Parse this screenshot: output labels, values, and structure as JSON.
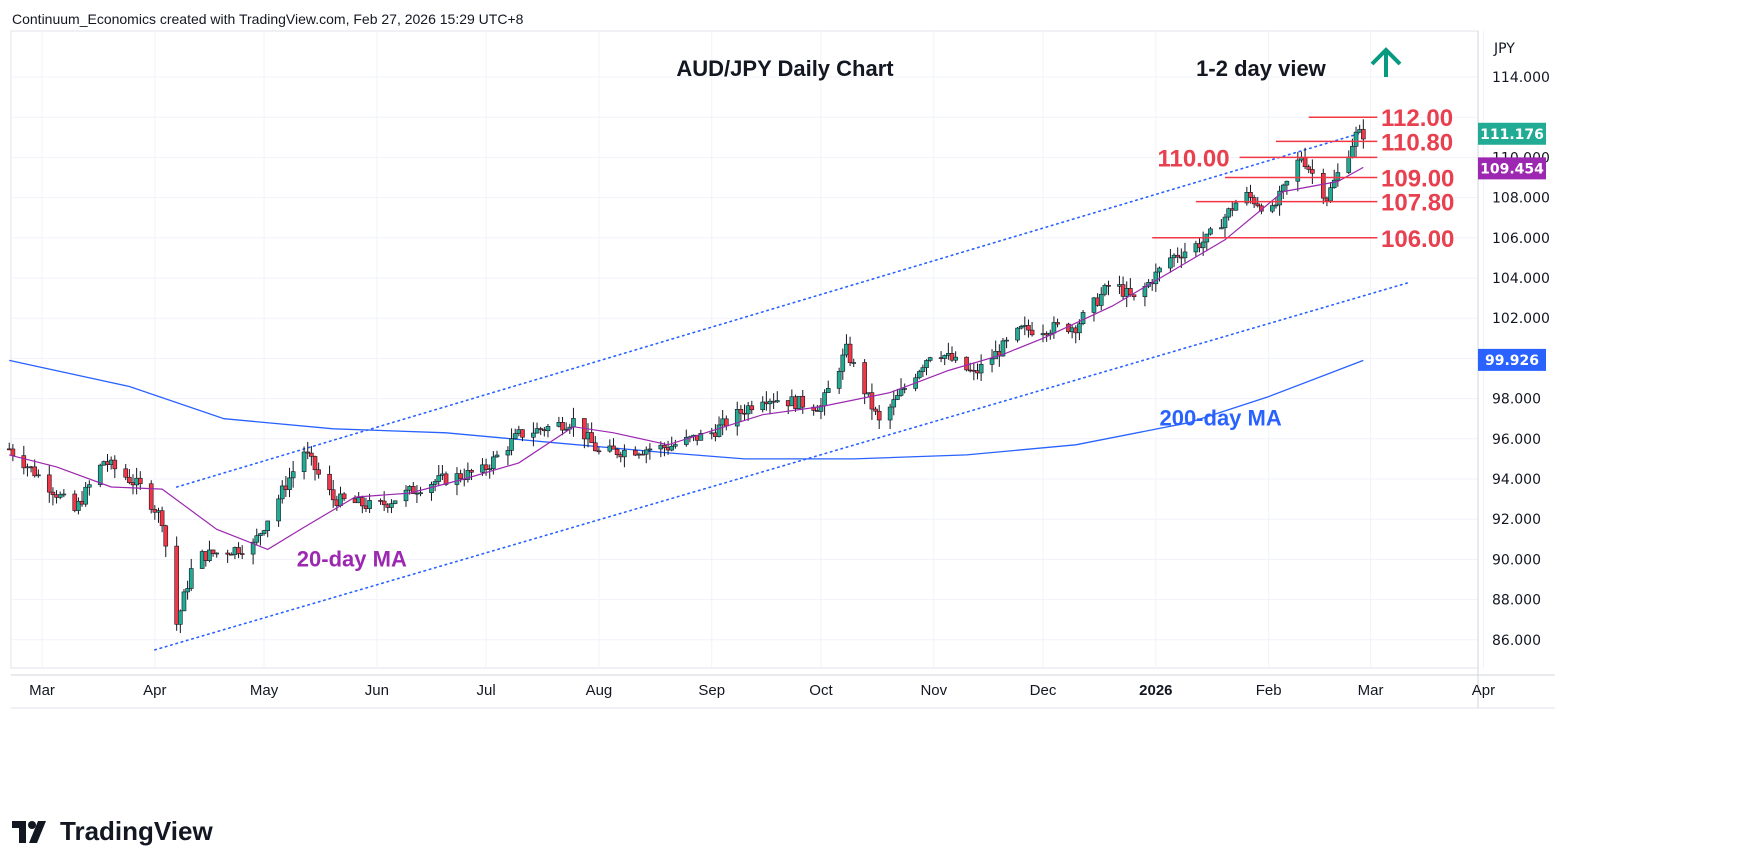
{
  "header": {
    "created_by": "Continuum_Economics created with TradingView.com, Feb 27, 2026 15:29 UTC+8"
  },
  "brand": {
    "name": "TradingView",
    "logo_icon": "tradingview-logo-icon"
  },
  "axis": {
    "currency": "JPY"
  },
  "colors": {
    "up": "#22ab94",
    "down": "#f23645",
    "ma20": "#9c27b0",
    "ma200": "#2962ff",
    "level": "#f23645",
    "channel": "#2962ff",
    "arrow": "#089981"
  },
  "chart_data": {
    "type": "candlestick",
    "title": "AUD/JPY Daily Chart",
    "view_label": "1-2 day view",
    "view_direction": "up",
    "ylim": [
      84.5,
      116.5
    ],
    "y_ticks": [
      86,
      88,
      90,
      92,
      94,
      96,
      98,
      100,
      102,
      104,
      106,
      108,
      110,
      112,
      114
    ],
    "y_tick_labels": [
      "86.000",
      "88.000",
      "90.000",
      "92.000",
      "94.000",
      "96.000",
      "98.000",
      "",
      "102.000",
      "104.000",
      "106.000",
      "108.000",
      "110.000",
      "",
      "114.000"
    ],
    "x_ticks": [
      "Mar",
      "Apr",
      "May",
      "Jun",
      "Jul",
      "Aug",
      "Sep",
      "Oct",
      "Nov",
      "Dec",
      "2026",
      "Feb",
      "Mar",
      "Apr"
    ],
    "price_labels": [
      {
        "value": 111.176,
        "text": "111.176",
        "color": "#22ab94"
      },
      {
        "value": 109.454,
        "text": "109.454",
        "color": "#9c27b0"
      },
      {
        "value": 99.926,
        "text": "99.926",
        "color": "#2962ff"
      }
    ],
    "levels": [
      {
        "value": 112.0,
        "label": "112.00",
        "from": "2026-02-12",
        "to": "2026-02-27",
        "label_side": "right"
      },
      {
        "value": 110.8,
        "label": "110.80",
        "from": "2026-02-03",
        "to": "2026-02-27",
        "label_side": "right"
      },
      {
        "value": 110.0,
        "label": "110.00",
        "from": "2026-01-24",
        "to": "2026-02-27",
        "label_side": "left"
      },
      {
        "value": 109.0,
        "label": "109.00",
        "from": "2026-01-20",
        "to": "2026-02-27",
        "label_side": "right"
      },
      {
        "value": 107.8,
        "label": "107.80",
        "from": "2026-01-12",
        "to": "2026-02-27",
        "label_side": "right"
      },
      {
        "value": 106.0,
        "label": "106.00",
        "from": "2025-12-31",
        "to": "2026-02-27",
        "label_side": "right"
      }
    ],
    "channel_upper": [
      {
        "x": "2025-04-07",
        "y": 93.6
      },
      {
        "x": "2026-02-28",
        "y": 111.3
      }
    ],
    "channel_lower": [
      {
        "x": "2025-04-01",
        "y": 85.5
      },
      {
        "x": "2026-03-12",
        "y": 103.8
      }
    ],
    "ma_labels": [
      {
        "text": "20-day MA",
        "x": "2025-05-10",
        "y": 90.0,
        "color": "#9c27b0"
      },
      {
        "text": "200-day MA",
        "x": "2026-01-02",
        "y": 97.0,
        "color": "#2962ff"
      }
    ],
    "ma200": [
      {
        "x": "2025-02-20",
        "y": 99.9
      },
      {
        "x": "2025-03-25",
        "y": 98.6
      },
      {
        "x": "2025-04-20",
        "y": 97.0
      },
      {
        "x": "2025-05-20",
        "y": 96.5
      },
      {
        "x": "2025-06-20",
        "y": 96.3
      },
      {
        "x": "2025-07-20",
        "y": 95.8
      },
      {
        "x": "2025-08-20",
        "y": 95.3
      },
      {
        "x": "2025-09-10",
        "y": 95.0
      },
      {
        "x": "2025-10-10",
        "y": 95.0
      },
      {
        "x": "2025-11-10",
        "y": 95.2
      },
      {
        "x": "2025-12-10",
        "y": 95.7
      },
      {
        "x": "2026-01-10",
        "y": 96.8
      },
      {
        "x": "2026-02-01",
        "y": 98.1
      },
      {
        "x": "2026-02-27",
        "y": 99.9
      }
    ],
    "ma20": [
      {
        "x": "2025-02-20",
        "y": 95.2
      },
      {
        "x": "2025-03-05",
        "y": 94.6
      },
      {
        "x": "2025-03-20",
        "y": 93.6
      },
      {
        "x": "2025-04-03",
        "y": 93.5
      },
      {
        "x": "2025-04-18",
        "y": 91.5
      },
      {
        "x": "2025-05-02",
        "y": 90.5
      },
      {
        "x": "2025-05-12",
        "y": 91.6
      },
      {
        "x": "2025-05-26",
        "y": 93.1
      },
      {
        "x": "2025-06-10",
        "y": 93.3
      },
      {
        "x": "2025-06-25",
        "y": 94.0
      },
      {
        "x": "2025-07-10",
        "y": 94.8
      },
      {
        "x": "2025-07-25",
        "y": 96.6
      },
      {
        "x": "2025-08-05",
        "y": 96.3
      },
      {
        "x": "2025-08-20",
        "y": 95.7
      },
      {
        "x": "2025-09-01",
        "y": 96.4
      },
      {
        "x": "2025-09-15",
        "y": 97.2
      },
      {
        "x": "2025-10-01",
        "y": 97.6
      },
      {
        "x": "2025-10-20",
        "y": 98.3
      },
      {
        "x": "2025-11-05",
        "y": 99.4
      },
      {
        "x": "2025-11-20",
        "y": 100.2
      },
      {
        "x": "2025-12-01",
        "y": 101.0
      },
      {
        "x": "2025-12-20",
        "y": 102.6
      },
      {
        "x": "2026-01-05",
        "y": 104.3
      },
      {
        "x": "2026-01-20",
        "y": 105.9
      },
      {
        "x": "2026-02-05",
        "y": 108.3
      },
      {
        "x": "2026-02-20",
        "y": 108.8
      },
      {
        "x": "2026-02-27",
        "y": 109.5
      }
    ],
    "candle_path": [
      [
        "2025-02-20",
        95.5
      ],
      [
        "2025-03-01",
        94.0
      ],
      [
        "2025-03-10",
        92.4
      ],
      [
        "2025-03-18",
        94.9
      ],
      [
        "2025-03-28",
        93.6
      ],
      [
        "2025-04-03",
        92.0
      ],
      [
        "2025-04-07",
        86.8
      ],
      [
        "2025-04-12",
        90.1
      ],
      [
        "2025-04-28",
        90.7
      ],
      [
        "2025-05-12",
        95.4
      ],
      [
        "2025-05-20",
        93.0
      ],
      [
        "2025-06-01",
        92.6
      ],
      [
        "2025-06-15",
        93.8
      ],
      [
        "2025-06-30",
        94.4
      ],
      [
        "2025-07-10",
        96.2
      ],
      [
        "2025-07-25",
        96.9
      ],
      [
        "2025-08-01",
        95.3
      ],
      [
        "2025-08-20",
        95.6
      ],
      [
        "2025-09-01",
        96.3
      ],
      [
        "2025-09-15",
        98.1
      ],
      [
        "2025-10-01",
        97.6
      ],
      [
        "2025-10-08",
        100.4
      ],
      [
        "2025-10-17",
        96.8
      ],
      [
        "2025-11-01",
        100.5
      ],
      [
        "2025-11-12",
        99.2
      ],
      [
        "2025-11-25",
        101.4
      ],
      [
        "2025-12-10",
        101.6
      ],
      [
        "2025-12-20",
        103.8
      ],
      [
        "2025-12-26",
        102.9
      ],
      [
        "2026-01-05",
        105.0
      ],
      [
        "2026-01-15",
        105.9
      ],
      [
        "2026-01-25",
        108.2
      ],
      [
        "2026-02-02",
        107.3
      ],
      [
        "2026-02-10",
        110.1
      ],
      [
        "2026-02-17",
        108.0
      ],
      [
        "2026-02-25",
        111.1
      ],
      [
        "2026-02-27",
        111.18
      ]
    ]
  }
}
